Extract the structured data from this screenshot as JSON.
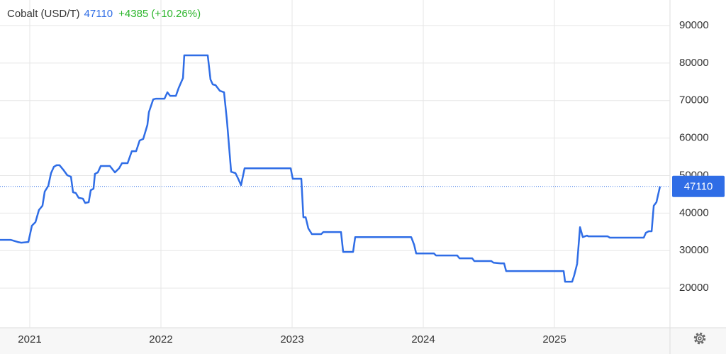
{
  "chart_data": {
    "type": "line",
    "title": "Cobalt (USD/T)",
    "last_price": 47110,
    "change": "+4385 (+10.26%)",
    "series": [
      {
        "name": "Cobalt",
        "color": "#2f6de6",
        "x": [
          2020.773,
          2020.854,
          2020.908,
          2020.935,
          2020.989,
          2021.016,
          2021.043,
          2021.07,
          2021.097,
          2021.114,
          2021.141,
          2021.162,
          2021.184,
          2021.205,
          2021.227,
          2021.259,
          2021.286,
          2021.314,
          2021.33,
          2021.351,
          2021.373,
          2021.405,
          2021.422,
          2021.449,
          2021.465,
          2021.486,
          2021.497,
          2021.519,
          2021.541,
          2021.611,
          2021.649,
          2021.681,
          2021.703,
          2021.746,
          2021.778,
          2021.811,
          2021.838,
          2021.865,
          2021.897,
          2021.908,
          2021.941,
          2021.962,
          2022.027,
          2022.049,
          2022.07,
          2022.114,
          2022.135,
          2022.168,
          2022.178,
          2022.357,
          2022.378,
          2022.395,
          2022.416,
          2022.449,
          2022.481,
          2022.503,
          2022.535,
          2022.568,
          2022.589,
          2022.611,
          2022.638,
          2022.989,
          2023.005,
          2023.07,
          2023.086,
          2023.103,
          2023.124,
          2023.151,
          2023.222,
          2023.238,
          2023.373,
          2023.389,
          2023.465,
          2023.481,
          2023.908,
          2023.93,
          2023.946,
          2024.081,
          2024.097,
          2024.259,
          2024.276,
          2024.373,
          2024.389,
          2024.519,
          2024.535,
          2024.589,
          2024.616,
          2024.632,
          2025.07,
          2025.081,
          2025.135,
          2025.151,
          2025.173,
          2025.195,
          2025.216,
          2025.249,
          2025.259,
          2025.405,
          2025.422,
          2025.681,
          2025.697,
          2025.719,
          2025.741,
          2025.757,
          2025.778,
          2025.805
        ],
        "values": [
          32860,
          32860,
          32300,
          32100,
          32300,
          36650,
          37600,
          40800,
          41950,
          45750,
          47250,
          50650,
          52350,
          52750,
          52750,
          51400,
          50100,
          49700,
          45550,
          45350,
          44050,
          43850,
          42700,
          42900,
          46100,
          46500,
          50450,
          50850,
          52550,
          52550,
          50850,
          51950,
          53300,
          53300,
          56500,
          56500,
          59350,
          59750,
          63500,
          66900,
          70300,
          70500,
          70500,
          72200,
          71250,
          71250,
          73350,
          76000,
          82050,
          82050,
          75600,
          74300,
          74100,
          72600,
          72200,
          64650,
          51000,
          50650,
          49150,
          47450,
          51950,
          51950,
          49150,
          49150,
          38900,
          38900,
          35900,
          34400,
          34400,
          34950,
          34950,
          29650,
          29650,
          33600,
          33600,
          31550,
          29250,
          29250,
          28700,
          28700,
          27950,
          27950,
          27200,
          27200,
          26800,
          26600,
          26600,
          24550,
          24550,
          21700,
          21700,
          23400,
          26450,
          36250,
          33600,
          34000,
          33800,
          33800,
          33450,
          33450,
          34750,
          35150,
          35150,
          41950,
          42900,
          47110
        ]
      }
    ],
    "xlim": [
      2020.773,
      2025.881
    ],
    "xticks": [
      2021,
      2022,
      2023,
      2024,
      2025
    ],
    "ylim": [
      10000,
      96800
    ],
    "yticks": [
      20000,
      30000,
      40000,
      50000,
      60000,
      70000,
      80000,
      90000
    ],
    "grid": true
  }
}
